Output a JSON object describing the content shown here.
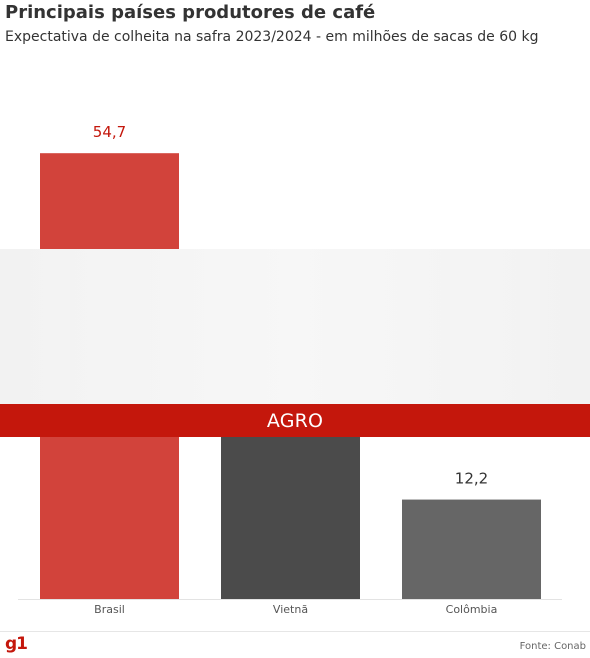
{
  "header": {
    "title": "Principais países produtores de café",
    "subtitle": "Expectativa de colheita na safra 2023/2024 - em milhões de sacas de 60 kg"
  },
  "chart_data": {
    "type": "bar",
    "categories": [
      "Brasil",
      "Vietnã",
      "Colômbia"
    ],
    "values": [
      54.7,
      28.5,
      12.2
    ],
    "value_labels": [
      "54,7",
      "",
      "12,2"
    ],
    "colors": [
      "#d2433b",
      "#4b4b4b",
      "#666666"
    ],
    "label_colors": [
      "#c4170c",
      "#333333",
      "#333333"
    ],
    "ylim": [
      0,
      60
    ],
    "grid": false
  },
  "overlay": {
    "label": "AGRO",
    "color": "#c4170c"
  },
  "footer": {
    "logo": "g1",
    "source": "Fonte: Conab"
  }
}
